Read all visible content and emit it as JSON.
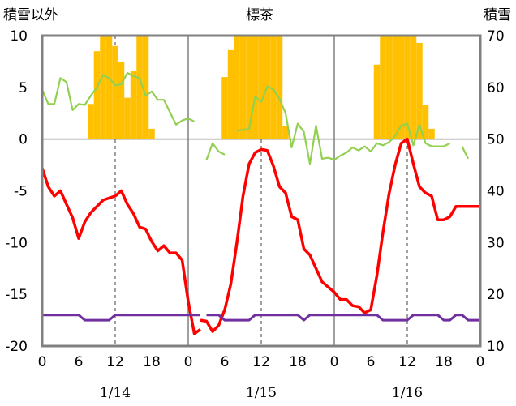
{
  "chart_data": {
    "type": "line",
    "title": "標茶",
    "left_axis_title": "積雪以外",
    "right_axis_title": "積雪",
    "left_ylim": [
      -20,
      10
    ],
    "left_yticks": [
      10,
      5,
      0,
      -5,
      -10,
      -15,
      -20
    ],
    "right_ylim": [
      10,
      70
    ],
    "right_yticks": [
      70,
      60,
      50,
      40,
      30,
      20,
      10
    ],
    "x_hours_range": [
      0,
      72
    ],
    "x_tick_labels": [
      "0",
      "6",
      "12",
      "18",
      "0",
      "6",
      "12",
      "18",
      "0",
      "6",
      "12",
      "18",
      "0"
    ],
    "date_labels": [
      "1/14",
      "1/15",
      "1/16"
    ],
    "grid": true,
    "colors": {
      "temperature": "#ff0000",
      "bars": "#ffc000",
      "green": "#92d050",
      "purple": "#7030a0",
      "frame": "#808080"
    },
    "series": [
      {
        "role": "bars",
        "axis": "left",
        "x": [
          8,
          9,
          10,
          11,
          12,
          13,
          14,
          15,
          16,
          17,
          18,
          30,
          31,
          32,
          33,
          34,
          35,
          36,
          37,
          38,
          39,
          40,
          55,
          56,
          57,
          58,
          59,
          60,
          61,
          62,
          63,
          64
        ],
        "values": [
          3.4,
          8.5,
          10,
          10,
          9,
          7.5,
          4,
          6.6,
          10,
          10,
          1,
          6,
          8.6,
          10,
          10,
          10,
          10,
          10,
          10,
          10,
          10,
          1.3,
          7.2,
          10,
          10,
          10,
          10,
          10,
          10,
          9.3,
          3.3,
          1
        ]
      },
      {
        "role": "temperature",
        "axis": "left",
        "segments": [
          {
            "x": [
              0,
              1,
              2,
              3,
              4,
              5,
              6,
              7,
              8,
              9,
              10,
              11,
              12,
              13,
              14,
              15,
              16,
              17,
              18,
              19,
              20,
              21,
              22,
              23,
              24,
              25,
              26
            ],
            "y": [
              -2.8,
              -4.6,
              -5.5,
              -5,
              -6.3,
              -7.6,
              -9.6,
              -8,
              -7.1,
              -6.5,
              -5.9,
              -5.7,
              -5.5,
              -5,
              -6.3,
              -7.2,
              -8.5,
              -8.7,
              -9.9,
              -10.8,
              -10.3,
              -11,
              -11,
              -11.7,
              -15.7,
              -18.8,
              -18.4
            ]
          },
          {
            "x": [
              26,
              27,
              28,
              29,
              30,
              31,
              32,
              33,
              34,
              35,
              36,
              37,
              38,
              39,
              40,
              41,
              42,
              43,
              44,
              45,
              46,
              47,
              48,
              49,
              50,
              51,
              52,
              53,
              54,
              55,
              56,
              57,
              58,
              59,
              60,
              61,
              62,
              63,
              64,
              65,
              66,
              67,
              68,
              69,
              70,
              71,
              72
            ],
            "y": [
              -17.5,
              -17.6,
              -18.6,
              -18,
              -16.5,
              -14,
              -10,
              -5.5,
              -2.4,
              -1.3,
              -1,
              -1.1,
              -2.6,
              -4.6,
              -5.2,
              -7.5,
              -7.8,
              -10.6,
              -11.2,
              -12.5,
              -13.8,
              -14.3,
              -14.8,
              -15.5,
              -15.5,
              -16.1,
              -16.2,
              -16.8,
              -16.5,
              -13.2,
              -9,
              -5.3,
              -2.5,
              -0.4,
              0,
              -2.4,
              -4.6,
              -5.2,
              -5.5,
              -7.8,
              -7.8,
              -7.5,
              -6.5,
              -6.5,
              -6.5,
              -6.5,
              -6.5
            ]
          }
        ]
      },
      {
        "role": "green",
        "axis": "left",
        "segments": [
          {
            "x": [
              0,
              1,
              2,
              3,
              4,
              5,
              6,
              7,
              8,
              9,
              10,
              11,
              12,
              13,
              14,
              15,
              16,
              17,
              18,
              19,
              20,
              21,
              22,
              23,
              24,
              25,
              26,
              27,
              28,
              29,
              30,
              31,
              32,
              33,
              34,
              35,
              36,
              37,
              38,
              39,
              40,
              41,
              42,
              43,
              44,
              45,
              46,
              47,
              48,
              49,
              50,
              51,
              52,
              53,
              54,
              55,
              56,
              57,
              58,
              59,
              60,
              61,
              62,
              63,
              64,
              65,
              66,
              67,
              68,
              69,
              70,
              71,
              72
            ],
            "y": [
              4.8,
              3.4,
              3.4,
              5.9,
              5.5,
              2.8,
              3.4,
              3.3,
              4.2,
              5,
              6.2,
              5.9,
              5.2,
              5.3,
              6.4,
              6.1,
              5.9,
              4.2,
              4.6,
              3.8,
              3.8,
              2.6,
              1.4,
              1.8,
              2,
              1.7,
              null,
              -2,
              -0.4,
              -1.2,
              -1.5,
              null,
              0.8,
              0.9,
              1,
              4.1,
              3.6,
              5.1,
              4.8,
              3.9,
              2.5,
              -0.8,
              1.5,
              0.7,
              -2.4,
              1.3,
              -1.9,
              -1.8,
              -2,
              -1.6,
              -1.3,
              -0.8,
              -1.1,
              -0.7,
              -1.2,
              -0.4,
              -0.6,
              -0.3,
              0.3,
              1.3,
              1.5,
              -0.6,
              1.4,
              -0.4,
              -0.7,
              -0.7,
              -0.7,
              -0.4,
              null,
              -0.7,
              -1.9,
              null,
              null
            ]
          }
        ]
      },
      {
        "role": "purple",
        "axis": "left",
        "segments": [
          {
            "x": [
              0,
              1,
              2,
              3,
              4,
              5,
              6,
              7,
              8,
              9,
              10,
              11,
              12,
              13,
              14,
              15,
              16,
              17,
              18,
              19,
              20,
              21,
              22,
              23,
              24,
              25,
              26
            ],
            "y": [
              -17,
              -17,
              -17,
              -17,
              -17,
              -17,
              -17,
              -17.5,
              -17.5,
              -17.5,
              -17.5,
              -17.5,
              -17,
              -17,
              -17,
              -17,
              -17,
              -17,
              -17,
              -17,
              -17,
              -17,
              -17,
              -17,
              -17,
              -17,
              -17
            ]
          },
          {
            "x": [
              27,
              28,
              29,
              30,
              31,
              32,
              33,
              34,
              35,
              36,
              37,
              38,
              39,
              40,
              41,
              42,
              43,
              44,
              45,
              46,
              47,
              48,
              49,
              50,
              51,
              52,
              53,
              54,
              55,
              56,
              57,
              58,
              59,
              60,
              61,
              62,
              63,
              64,
              65,
              66,
              67,
              68,
              69,
              70,
              71,
              72
            ],
            "y": [
              -17,
              -17,
              -17,
              -17.5,
              -17.5,
              -17.5,
              -17.5,
              -17.5,
              -17,
              -17,
              -17,
              -17,
              -17,
              -17,
              -17,
              -17,
              -17.5,
              -17,
              -17,
              -17,
              -17,
              -17,
              -17,
              -17,
              -17,
              -17,
              -17,
              -17,
              -17,
              -17.5,
              -17.5,
              -17.5,
              -17.5,
              -17.5,
              -17,
              -17,
              -17,
              -17,
              -17,
              -17.5,
              -17.5,
              -17,
              -17,
              -17.5,
              -17.5,
              -17.5
            ]
          }
        ]
      }
    ]
  }
}
